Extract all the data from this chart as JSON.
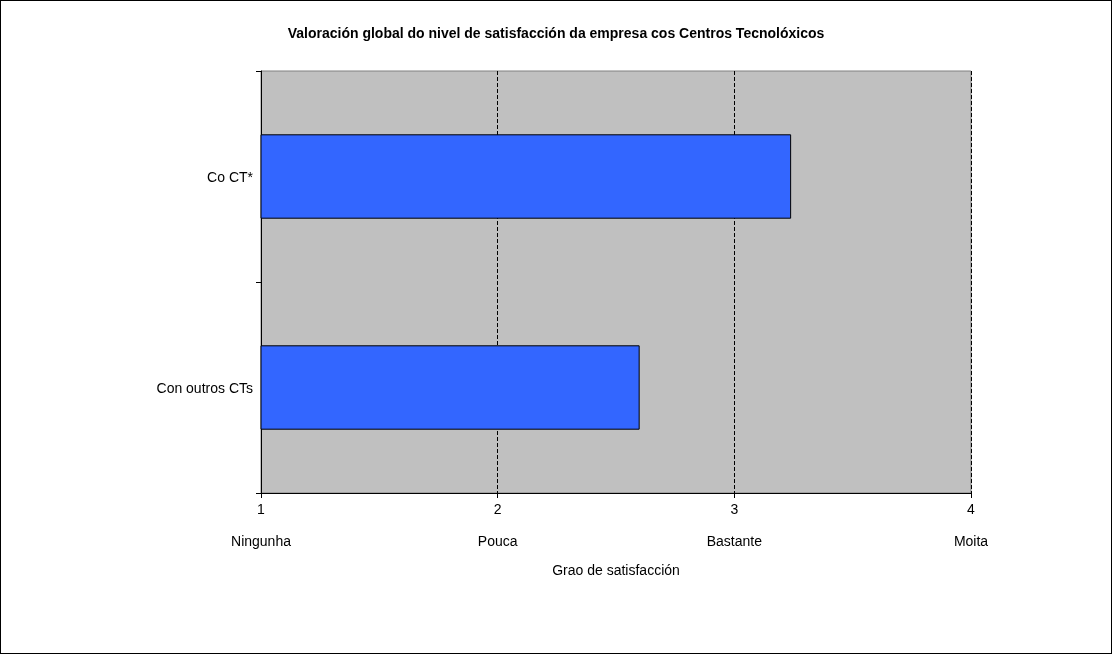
{
  "chart_data": {
    "type": "bar",
    "orientation": "horizontal",
    "title": "Valoración global do nivel de satisfacción da empresa cos Centros Tecnolóxicos",
    "xlabel": "Grao de satisfacción",
    "categories": [
      "Co CT*",
      "Con outros CTs"
    ],
    "values": [
      3.24,
      2.6
    ],
    "color": "#3366ff",
    "xlim": [
      1,
      4
    ],
    "xticks": [
      {
        "value": 1,
        "label": "1\n\nNingunha"
      },
      {
        "value": 2,
        "label": "2\n\nPouca"
      },
      {
        "value": 3,
        "label": "3\n\nBastante"
      },
      {
        "value": 4,
        "label": "4\n\nMoita"
      }
    ],
    "grid": "x"
  }
}
